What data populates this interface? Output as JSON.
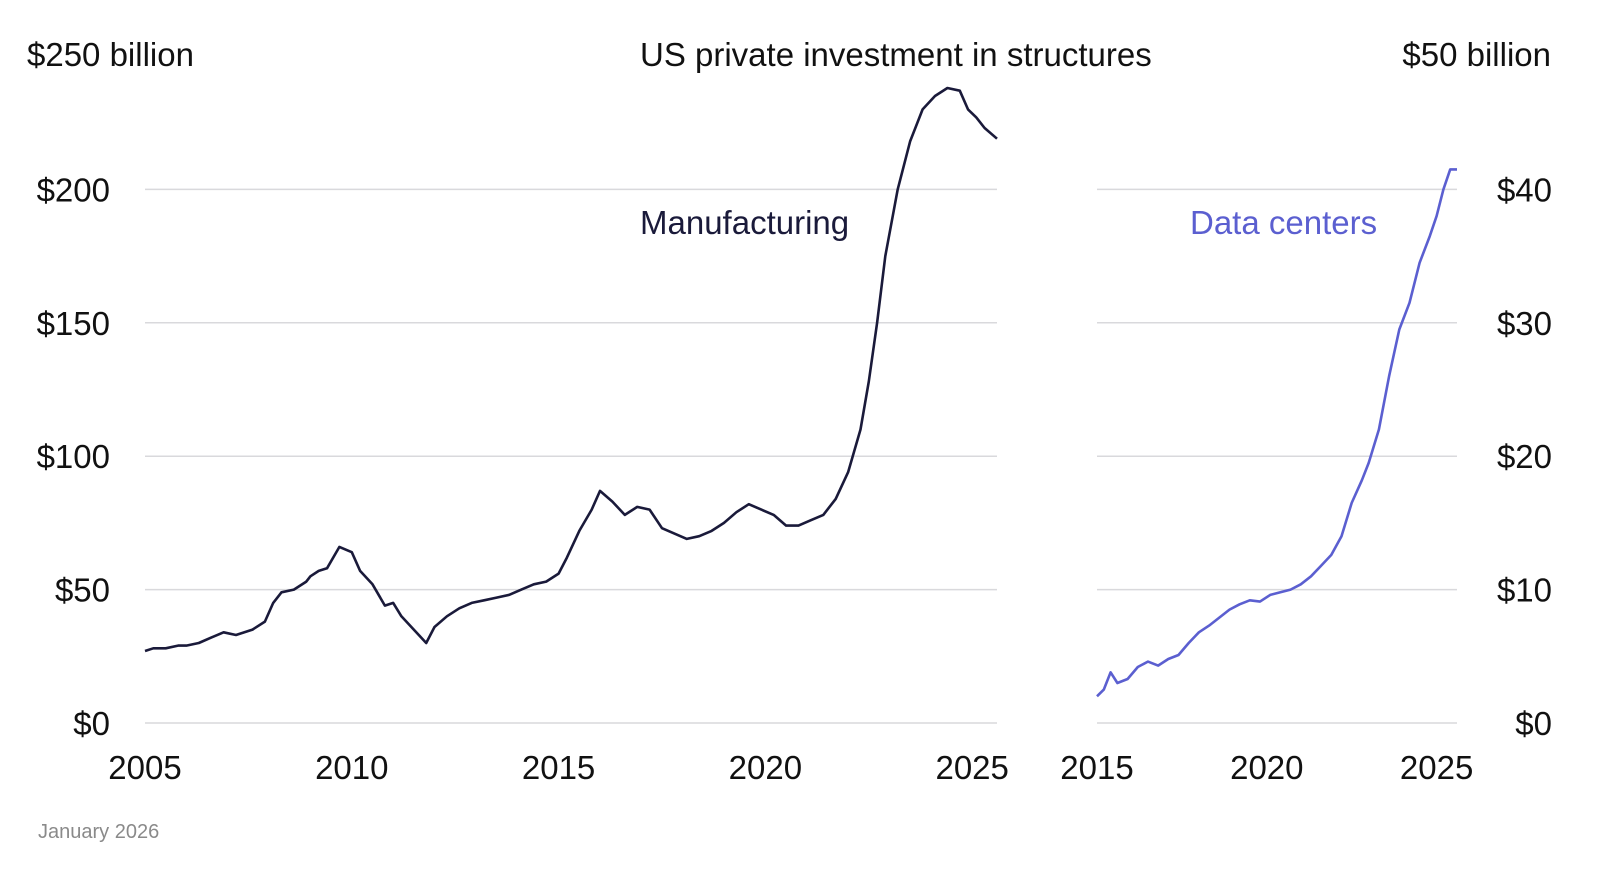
{
  "chart_data": [
    {
      "type": "line",
      "title": "US private investment in structures",
      "unit_label": "$250 billion",
      "series_label": "Manufacturing",
      "color": "#1a1a3a",
      "xlim": [
        2005,
        2025.6
      ],
      "ylim": [
        0,
        250
      ],
      "yticks": [
        0,
        50,
        100,
        150,
        200
      ],
      "ytick_labels": [
        "$0",
        "$50",
        "$100",
        "$150",
        "$200"
      ],
      "xticks": [
        2005,
        2010,
        2015,
        2020,
        2025
      ],
      "xtick_labels": [
        "2005",
        "2010",
        "2015",
        "2020",
        "2025"
      ],
      "series": [
        {
          "name": "Manufacturing",
          "x": [
            2005.0,
            2005.2,
            2005.5,
            2005.8,
            2006.0,
            2006.3,
            2006.6,
            2006.9,
            2007.2,
            2007.6,
            2007.9,
            2008.1,
            2008.3,
            2008.6,
            2008.9,
            2009.0,
            2009.2,
            2009.4,
            2009.7,
            2010.0,
            2010.2,
            2010.5,
            2010.8,
            2011.0,
            2011.2,
            2011.5,
            2011.8,
            2012.0,
            2012.3,
            2012.6,
            2012.9,
            2013.2,
            2013.5,
            2013.8,
            2014.1,
            2014.4,
            2014.7,
            2015.0,
            2015.2,
            2015.5,
            2015.8,
            2016.0,
            2016.3,
            2016.6,
            2016.9,
            2017.2,
            2017.5,
            2017.8,
            2018.1,
            2018.4,
            2018.7,
            2019.0,
            2019.3,
            2019.6,
            2019.9,
            2020.2,
            2020.5,
            2020.8,
            2021.1,
            2021.4,
            2021.7,
            2022.0,
            2022.3,
            2022.5,
            2022.7,
            2022.9,
            2023.2,
            2023.5,
            2023.8,
            2024.1,
            2024.4,
            2024.7,
            2024.9,
            2025.1,
            2025.3,
            2025.6
          ],
          "values": [
            27,
            28,
            28,
            29,
            29,
            30,
            32,
            34,
            33,
            35,
            38,
            45,
            49,
            50,
            53,
            55,
            57,
            58,
            66,
            64,
            57,
            52,
            44,
            45,
            40,
            35,
            30,
            36,
            40,
            43,
            45,
            46,
            47,
            48,
            50,
            52,
            53,
            56,
            62,
            72,
            80,
            87,
            83,
            78,
            81,
            80,
            73,
            71,
            69,
            70,
            72,
            75,
            79,
            82,
            80,
            78,
            74,
            74,
            76,
            78,
            84,
            94,
            110,
            128,
            150,
            175,
            200,
            218,
            230,
            235,
            238,
            237,
            230,
            227,
            223,
            219
          ]
        }
      ]
    },
    {
      "type": "line",
      "unit_label": "$50 billion",
      "series_label": "Data centers",
      "color": "#5b5fd0",
      "xlim": [
        2015,
        2025.6
      ],
      "ylim": [
        0,
        50
      ],
      "yticks": [
        0,
        10,
        20,
        30,
        40
      ],
      "ytick_labels": [
        "$0",
        "$10",
        "$20",
        "$30",
        "$40"
      ],
      "xticks": [
        2015,
        2020,
        2025
      ],
      "xtick_labels": [
        "2015",
        "2020",
        "2025"
      ],
      "series": [
        {
          "name": "Data centers",
          "x": [
            2015.0,
            2015.2,
            2015.4,
            2015.6,
            2015.9,
            2016.2,
            2016.5,
            2016.8,
            2017.1,
            2017.4,
            2017.7,
            2018.0,
            2018.3,
            2018.6,
            2018.9,
            2019.2,
            2019.5,
            2019.8,
            2020.1,
            2020.4,
            2020.7,
            2021.0,
            2021.3,
            2021.6,
            2021.9,
            2022.2,
            2022.5,
            2022.8,
            2023.0,
            2023.3,
            2023.6,
            2023.9,
            2024.2,
            2024.5,
            2024.8,
            2025.0,
            2025.2,
            2025.4,
            2025.6
          ],
          "values": [
            2.0,
            2.5,
            3.8,
            3.0,
            3.3,
            4.2,
            4.6,
            4.3,
            4.8,
            5.1,
            6.0,
            6.8,
            7.3,
            7.9,
            8.5,
            8.9,
            9.2,
            9.1,
            9.6,
            9.8,
            10.0,
            10.4,
            11.0,
            11.8,
            12.6,
            14.0,
            16.5,
            18.2,
            19.5,
            22.0,
            26.0,
            29.5,
            31.5,
            34.5,
            36.5,
            38.0,
            40.0,
            41.5,
            41.5
          ]
        }
      ]
    }
  ],
  "footer": {
    "date": "January 2026"
  }
}
